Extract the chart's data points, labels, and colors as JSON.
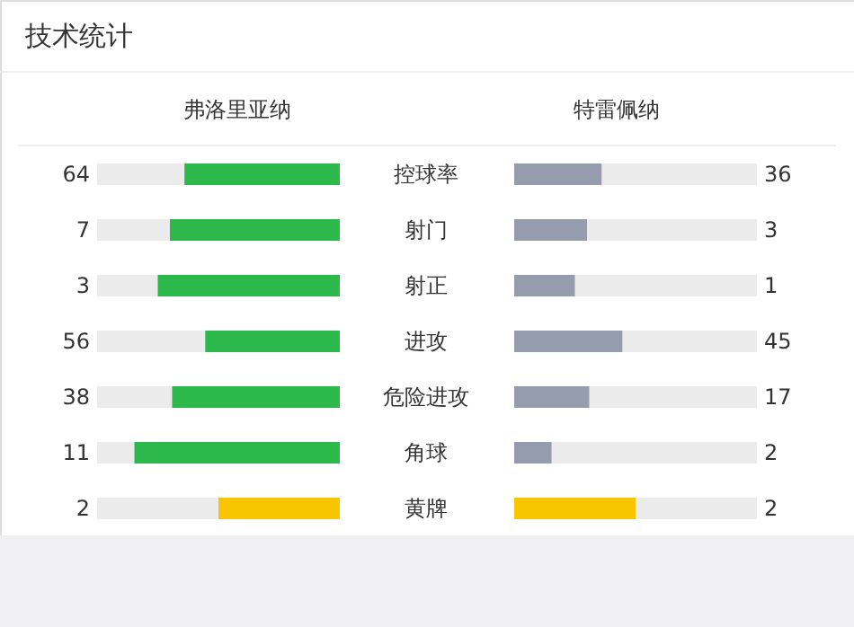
{
  "chart_data": {
    "type": "other",
    "title": "技术统计",
    "categories": [
      "控球率",
      "射门",
      "射正",
      "进攻",
      "危险进攻",
      "角球",
      "黄牌"
    ],
    "data_labels": true,
    "series": [
      {
        "name": "弗洛里亚纳",
        "colors": [
          "#2db84b",
          "#2db84b",
          "#2db84b",
          "#2db84b",
          "#2db84b",
          "#2db84b",
          "#f7c600"
        ],
        "values": [
          64,
          7,
          3,
          56,
          38,
          11,
          2
        ]
      },
      {
        "name": "特雷佩纳",
        "colors": [
          "#949cad",
          "#949cad",
          "#949cad",
          "#949cad",
          "#949cad",
          "#949cad",
          "#f7c600"
        ],
        "values": [
          36,
          3,
          1,
          45,
          17,
          2,
          2
        ]
      }
    ]
  }
}
